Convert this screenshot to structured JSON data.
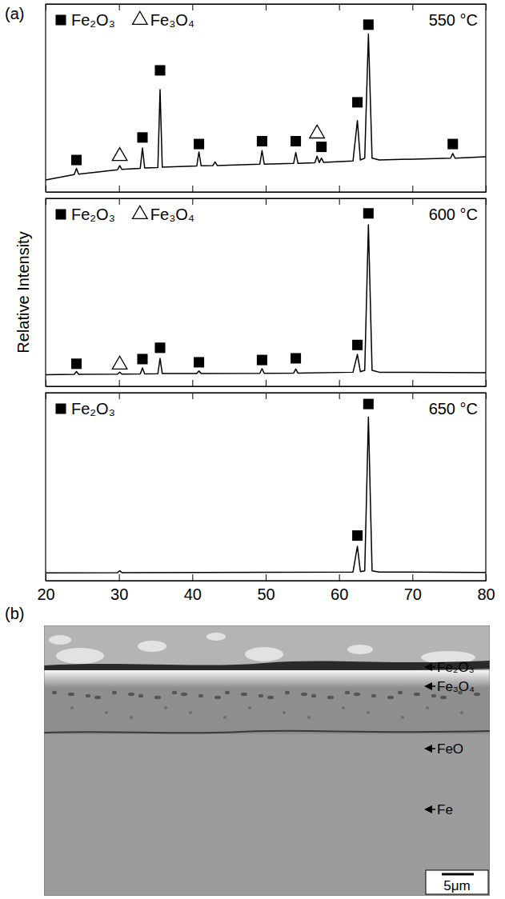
{
  "panel_labels": [
    "(a)",
    "(b)"
  ],
  "chart_data": [
    {
      "type": "line",
      "title": "550 °C",
      "xlim": [
        20,
        80
      ],
      "xticks": [
        20,
        30,
        40,
        50,
        60,
        70,
        80
      ],
      "ylim": [
        0,
        100
      ],
      "tick_labels": false,
      "legend": "upper left",
      "series": [
        {
          "type": "line",
          "color": "#000000",
          "x": [
            20,
            23.9,
            24.2,
            24.5,
            29.8,
            30.1,
            30.4,
            32.9,
            33.2,
            33.5,
            35.3,
            35.6,
            35.9,
            40.6,
            40.9,
            41.2,
            42.8,
            43.1,
            43.4,
            49.2,
            49.5,
            49.8,
            53.8,
            54.1,
            54.4,
            56.7,
            57.0,
            57.3,
            57.6,
            57.9,
            61.9,
            62.5,
            62.9,
            63.5,
            64.0,
            64.5,
            65.5,
            75.2,
            75.5,
            75.8,
            80
          ],
          "values": [
            6.4,
            9.3,
            12.5,
            9.5,
            11.8,
            14,
            12,
            12.6,
            23.4,
            12.8,
            13,
            54.5,
            13.2,
            13.8,
            21.3,
            13.9,
            14,
            16,
            14,
            14.8,
            22,
            14.8,
            15.2,
            21,
            15.2,
            15.5,
            19,
            15.6,
            18,
            15.7,
            16.5,
            38,
            17,
            18,
            84,
            18,
            17,
            18,
            20.5,
            18,
            18.7
          ]
        },
        {
          "name": "Fe₂O₃",
          "type": "scatter",
          "marker": "square",
          "color": "#000000",
          "x": [
            24.2,
            33.2,
            35.6,
            40.9,
            49.5,
            54.1,
            57.6,
            62.5,
            64.0,
            75.5
          ],
          "values": [
            17,
            29,
            64.7,
            25.5,
            27,
            27,
            24,
            47.7,
            89,
            25.5
          ]
        },
        {
          "name": "Fe₃O₄",
          "type": "scatter",
          "marker": "open-triangle",
          "color": "#000000",
          "x": [
            30.1,
            57.0
          ],
          "values": [
            19,
            31
          ]
        }
      ]
    },
    {
      "type": "line",
      "title": "600 °C",
      "ylabel": "Relative Intensity",
      "xlim": [
        20,
        80
      ],
      "xticks": [
        20,
        30,
        40,
        50,
        60,
        70,
        80
      ],
      "ylim": [
        0,
        100
      ],
      "tick_labels": false,
      "legend": "upper left",
      "series": [
        {
          "type": "line",
          "color": "#000000",
          "x": [
            20,
            23.9,
            24.2,
            24.5,
            29.8,
            30.1,
            30.4,
            32.9,
            33.2,
            33.5,
            35.3,
            35.6,
            35.9,
            40.6,
            40.9,
            41.2,
            49.2,
            49.5,
            49.8,
            53.8,
            54.1,
            54.4,
            61.9,
            62.5,
            62.9,
            63.5,
            64.0,
            64.5,
            65.5,
            80
          ],
          "values": [
            6.2,
            6.4,
            7.9,
            6.4,
            6.5,
            7.5,
            6.5,
            6.6,
            9.8,
            6.6,
            6.7,
            14.9,
            6.8,
            6.8,
            8.2,
            6.8,
            6.9,
            9.4,
            6.9,
            7,
            9.2,
            7,
            7.5,
            17,
            7.8,
            8.5,
            86,
            8.5,
            7.5,
            7.2
          ]
        },
        {
          "name": "Fe₂O₃",
          "type": "scatter",
          "marker": "square",
          "color": "#000000",
          "x": [
            24.2,
            33.2,
            35.6,
            40.9,
            49.5,
            54.1,
            62.5,
            64.0
          ],
          "values": [
            12,
            14.5,
            20.5,
            12.8,
            14,
            14.9,
            22,
            92
          ]
        },
        {
          "name": "Fe₃O₄",
          "type": "scatter",
          "marker": "open-triangle",
          "color": "#000000",
          "x": [
            30.1
          ],
          "values": [
            11.5
          ]
        }
      ]
    },
    {
      "type": "line",
      "title": "650 °C",
      "xlim": [
        20,
        80
      ],
      "xticks": [
        20,
        30,
        40,
        50,
        60,
        70,
        80
      ],
      "ylim": [
        0,
        100
      ],
      "tick_labels": "x",
      "legend": "upper left",
      "series": [
        {
          "type": "line",
          "color": "#000000",
          "x": [
            20,
            29.8,
            30.1,
            30.4,
            61.9,
            62.5,
            62.9,
            63.5,
            64.0,
            64.5,
            65.5,
            80
          ],
          "values": [
            4.2,
            4.3,
            5.3,
            4.3,
            4.6,
            18.3,
            4.8,
            5.2,
            87,
            5.2,
            4.6,
            4.4
          ]
        },
        {
          "name": "Fe₂O₃",
          "type": "scatter",
          "marker": "square",
          "color": "#000000",
          "x": [
            62.5,
            64.0
          ],
          "values": [
            24,
            94
          ]
        }
      ]
    }
  ],
  "micrograph": {
    "layers": [
      "Fe₂O₃",
      "Fe₃O₄",
      "FeO",
      "Fe"
    ],
    "scale_bar": "5μm"
  }
}
